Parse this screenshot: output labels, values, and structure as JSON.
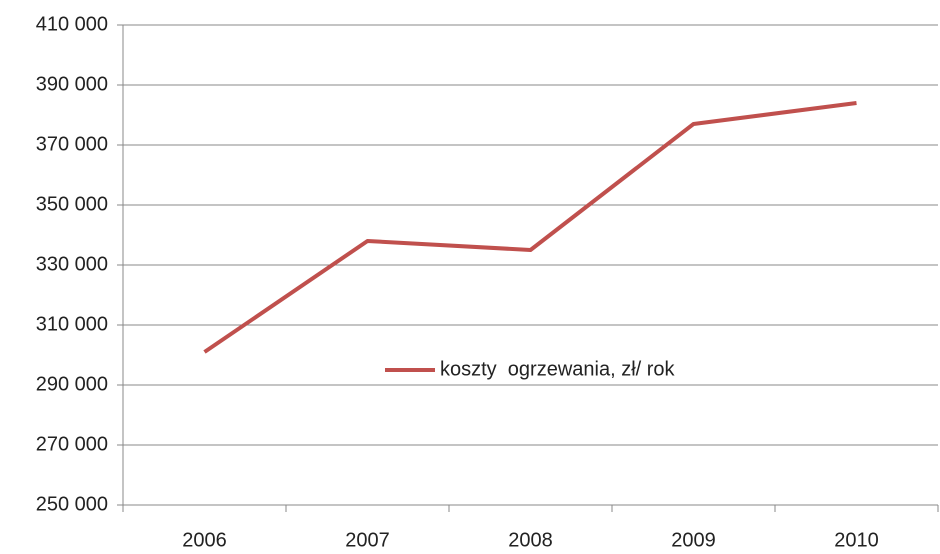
{
  "chart_data": {
    "type": "line",
    "categories": [
      "2006",
      "2007",
      "2008",
      "2009",
      "2010"
    ],
    "series": [
      {
        "name": "koszty  ogrzewania, zł/ rok",
        "color": "#c0504d",
        "values": [
          301000,
          338000,
          335000,
          377000,
          384000
        ]
      }
    ],
    "ylim": [
      250000,
      410000
    ],
    "yticks": [
      {
        "value": 250000,
        "label": "250 000"
      },
      {
        "value": 270000,
        "label": "270 000"
      },
      {
        "value": 290000,
        "label": "290 000"
      },
      {
        "value": 310000,
        "label": "310 000"
      },
      {
        "value": 330000,
        "label": "330 000"
      },
      {
        "value": 350000,
        "label": "350 000"
      },
      {
        "value": 370000,
        "label": "370 000"
      },
      {
        "value": 390000,
        "label": "390 000"
      },
      {
        "value": 410000,
        "label": "410 000"
      }
    ],
    "grid": true,
    "legend": "center"
  }
}
